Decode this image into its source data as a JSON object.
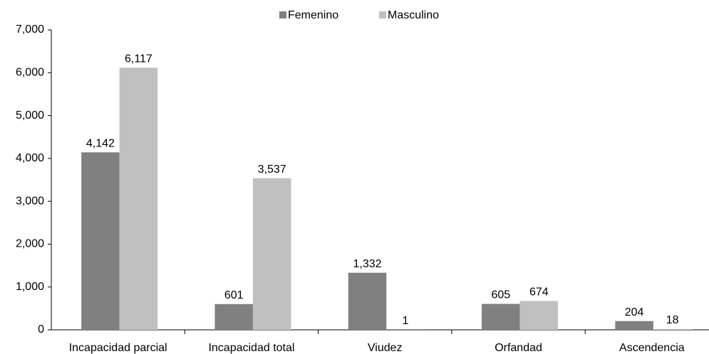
{
  "chart_data": {
    "type": "bar",
    "categories": [
      "Incapacidad parcial",
      "Incapacidad total",
      "Viudez",
      "Orfandad",
      "Ascendencia"
    ],
    "series": [
      {
        "name": "Femenino",
        "color": "#808080",
        "values": [
          4142,
          601,
          1332,
          605,
          204
        ],
        "value_labels": [
          "4,142",
          "601",
          "1,332",
          "605",
          "204"
        ]
      },
      {
        "name": "Masculino",
        "color": "#c0c0c0",
        "values": [
          6117,
          3537,
          1,
          674,
          18
        ],
        "value_labels": [
          "6,117",
          "3,537",
          "1",
          "674",
          "18"
        ]
      }
    ],
    "ylim": [
      0,
      7000
    ],
    "yticks": [
      0,
      {
        "value": 1000,
        "label": "1,000"
      },
      {
        "value": 2000,
        "label": "2,000"
      },
      {
        "value": 3000,
        "label": "3,000"
      },
      {
        "value": 4000,
        "label": "4,000"
      },
      {
        "value": 5000,
        "label": "5,000"
      },
      {
        "value": 6000,
        "label": "6,000"
      },
      {
        "value": 7000,
        "label": "7,000"
      }
    ],
    "grid": false,
    "legend": "top"
  }
}
